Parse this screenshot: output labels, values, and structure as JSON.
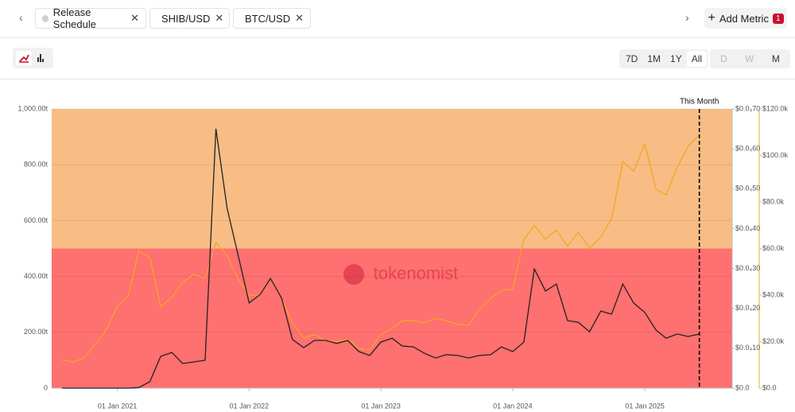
{
  "ui": {
    "add_metric": "Add Metric",
    "badge": "1",
    "ranges": [
      "7D",
      "1M",
      "1Y",
      "All"
    ],
    "intervals": [
      "D",
      "W",
      "M"
    ],
    "watermark": "tokenomist"
  },
  "chart_data": {
    "type": "line",
    "release_schedule": {
      "name": "Release Schedule",
      "color": "#d0d0d0",
      "bands": [
        {
          "from": 0,
          "to": 500,
          "color": "#ff7070"
        },
        {
          "from": 500,
          "to": 1000,
          "color": "#f7bd85"
        }
      ]
    },
    "x": [
      "2020-08-01",
      "2020-09-01",
      "2020-10-01",
      "2020-11-01",
      "2020-12-01",
      "2021-01-01",
      "2021-02-01",
      "2021-03-01",
      "2021-04-01",
      "2021-05-01",
      "2021-06-01",
      "2021-07-01",
      "2021-08-01",
      "2021-09-01",
      "2021-10-01",
      "2021-11-01",
      "2021-12-01",
      "2022-01-01",
      "2022-02-01",
      "2022-03-01",
      "2022-04-01",
      "2022-05-01",
      "2022-06-01",
      "2022-07-01",
      "2022-08-01",
      "2022-09-01",
      "2022-10-01",
      "2022-11-01",
      "2022-12-01",
      "2023-01-01",
      "2023-02-01",
      "2023-03-01",
      "2023-04-01",
      "2023-05-01",
      "2023-06-01",
      "2023-07-01",
      "2023-08-01",
      "2023-09-01",
      "2023-10-01",
      "2023-11-01",
      "2023-12-01",
      "2024-01-01",
      "2024-02-01",
      "2024-03-01",
      "2024-04-01",
      "2024-05-01",
      "2024-06-01",
      "2024-07-01",
      "2024-08-01",
      "2024-09-01",
      "2024-10-01",
      "2024-11-01",
      "2024-12-01",
      "2025-01-01",
      "2025-02-01",
      "2025-03-01",
      "2025-04-01",
      "2025-05-01",
      "2025-06-01"
    ],
    "series": [
      {
        "name": "SHIB/USD",
        "color": "#222222",
        "dot": "#333333",
        "axis": "y2",
        "values": [
          0,
          0,
          0,
          0,
          0,
          0,
          0,
          1.4e-07,
          1.61e-06,
          7.98e-06,
          8.96e-06,
          6.16e-06,
          6.58e-06,
          7e-06,
          6.503e-05,
          4.508e-05,
          3.353e-05,
          2.135e-05,
          2.352e-05,
          2.751e-05,
          2.254e-05,
          1.218e-05,
          1.015e-05,
          1.197e-05,
          1.197e-05,
          1.12e-05,
          1.197e-05,
          9.17e-06,
          8.19e-06,
          1.155e-05,
          1.253e-05,
          1.057e-05,
          1.036e-05,
          8.75e-06,
          7.56e-06,
          8.4e-06,
          8.19e-06,
          7.56e-06,
          8.19e-06,
          8.4e-06,
          1.036e-05,
          9.17e-06,
          1.155e-05,
          2.989e-05,
          2.436e-05,
          2.611e-05,
          1.694e-05,
          1.652e-05,
          1.414e-05,
          1.932e-05,
          1.855e-05,
          2.611e-05,
          2.135e-05,
          1.897e-05,
          1.456e-05,
          1.253e-05,
          1.358e-05,
          1.295e-05,
          1.358e-05
        ]
      },
      {
        "name": "BTC/USD",
        "color": "#f5a623",
        "dot": "#e8642c",
        "axis": "y3",
        "values": [
          12000,
          11300,
          13000,
          18800,
          25000,
          35200,
          40000,
          59000,
          56000,
          35000,
          39000,
          45500,
          49000,
          47000,
          62600,
          57000,
          47000,
          40000,
          40000,
          47000,
          38600,
          28000,
          21500,
          23000,
          20500,
          20000,
          21000,
          17000,
          16500,
          23000,
          25600,
          29000,
          29000,
          28000,
          30000,
          29000,
          27500,
          27000,
          34000,
          38600,
          42000,
          42500,
          64000,
          70000,
          64000,
          68000,
          61000,
          67000,
          60000,
          65000,
          72800,
          97400,
          93300,
          105000,
          85500,
          83000,
          95000,
          104000,
          109000
        ]
      }
    ],
    "xlim": [
      "2020-07-03",
      "2025-08-31"
    ],
    "xticks": [
      {
        "value": "2021-01-01",
        "label": "01 Jan 2021"
      },
      {
        "value": "2022-01-01",
        "label": "01 Jan 2022"
      },
      {
        "value": "2023-01-01",
        "label": "01 Jan 2023"
      },
      {
        "value": "2024-01-01",
        "label": "01 Jan 2024"
      },
      {
        "value": "2025-01-01",
        "label": "01 Jan 2025"
      }
    ],
    "ylim": [
      0,
      1000
    ],
    "yticks": [
      0,
      {
        "value": 200,
        "label": "200.00t"
      },
      {
        "value": 400,
        "label": "400.00t"
      },
      {
        "value": 600,
        "label": "600.00t"
      },
      {
        "value": 800,
        "label": "800.00t"
      },
      {
        "value": 1000,
        "label": "1,000.00t"
      }
    ],
    "y2lim": [
      0,
      7e-05
    ],
    "y2ticks": [
      {
        "value": 0,
        "label": "$0.0"
      },
      {
        "value": 1e-05,
        "label": "$0.0₄10"
      },
      {
        "value": 2e-05,
        "label": "$0.0₄20"
      },
      {
        "value": 3e-05,
        "label": "$0.0₄30"
      },
      {
        "value": 4e-05,
        "label": "$0.0₄40"
      },
      {
        "value": 5e-05,
        "label": "$0.0₄50"
      },
      {
        "value": 6e-05,
        "label": "$0.0₄60"
      },
      {
        "value": 7e-05,
        "label": "$0.0₄70"
      }
    ],
    "y3lim": [
      0,
      120000
    ],
    "y3ticks": [
      {
        "value": 0,
        "label": "$0.0"
      },
      {
        "value": 20000,
        "label": "$20.0k"
      },
      {
        "value": 40000,
        "label": "$40.0k"
      },
      {
        "value": 60000,
        "label": "$60.0k"
      },
      {
        "value": 80000,
        "label": "$80.0k"
      },
      {
        "value": 100000,
        "label": "$100.0k"
      },
      {
        "value": 120000,
        "label": "$120.0k"
      }
    ],
    "grid": true,
    "this_month": {
      "label": "This Month",
      "x": "2025-06-01"
    }
  }
}
